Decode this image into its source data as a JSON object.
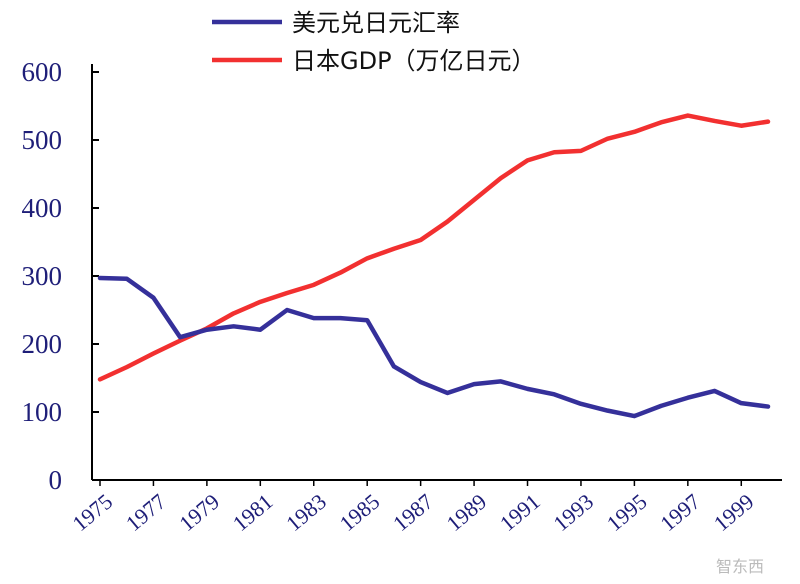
{
  "chart_data": {
    "type": "line",
    "title": "",
    "xlabel": "",
    "ylabel": "",
    "ylim": [
      0,
      600
    ],
    "yticks": [
      "0",
      "100",
      "200",
      "300",
      "400",
      "500",
      "600"
    ],
    "xlim": [
      1975,
      2000
    ],
    "xticks": [
      "1975",
      "1977",
      "1979",
      "1981",
      "1983",
      "1985",
      "1987",
      "1989",
      "1991",
      "1993",
      "1995",
      "1997",
      "1999"
    ],
    "grid": false,
    "legend": "top",
    "x": [
      1975,
      1976,
      1977,
      1978,
      1979,
      1980,
      1981,
      1982,
      1983,
      1984,
      1985,
      1986,
      1987,
      1988,
      1989,
      1990,
      1991,
      1992,
      1993,
      1994,
      1995,
      1996,
      1997,
      1998,
      1999,
      2000
    ],
    "series": [
      {
        "name": "美元兑日元汇率",
        "color": "#35309a",
        "values": [
          297,
          296,
          268,
          210,
          221,
          226,
          221,
          250,
          238,
          238,
          235,
          167,
          144,
          128,
          141,
          145,
          134,
          126,
          112,
          102,
          94,
          109,
          121,
          131,
          113,
          108
        ]
      },
      {
        "name": "日本GDP（万亿日元）",
        "color": "#f23030",
        "values": [
          148,
          166,
          186,
          205,
          223,
          245,
          262,
          275,
          287,
          305,
          326,
          340,
          353,
          380,
          412,
          444,
          470,
          482,
          484,
          502,
          512,
          526,
          536,
          528,
          521,
          527
        ]
      }
    ]
  },
  "watermark": "智东西"
}
